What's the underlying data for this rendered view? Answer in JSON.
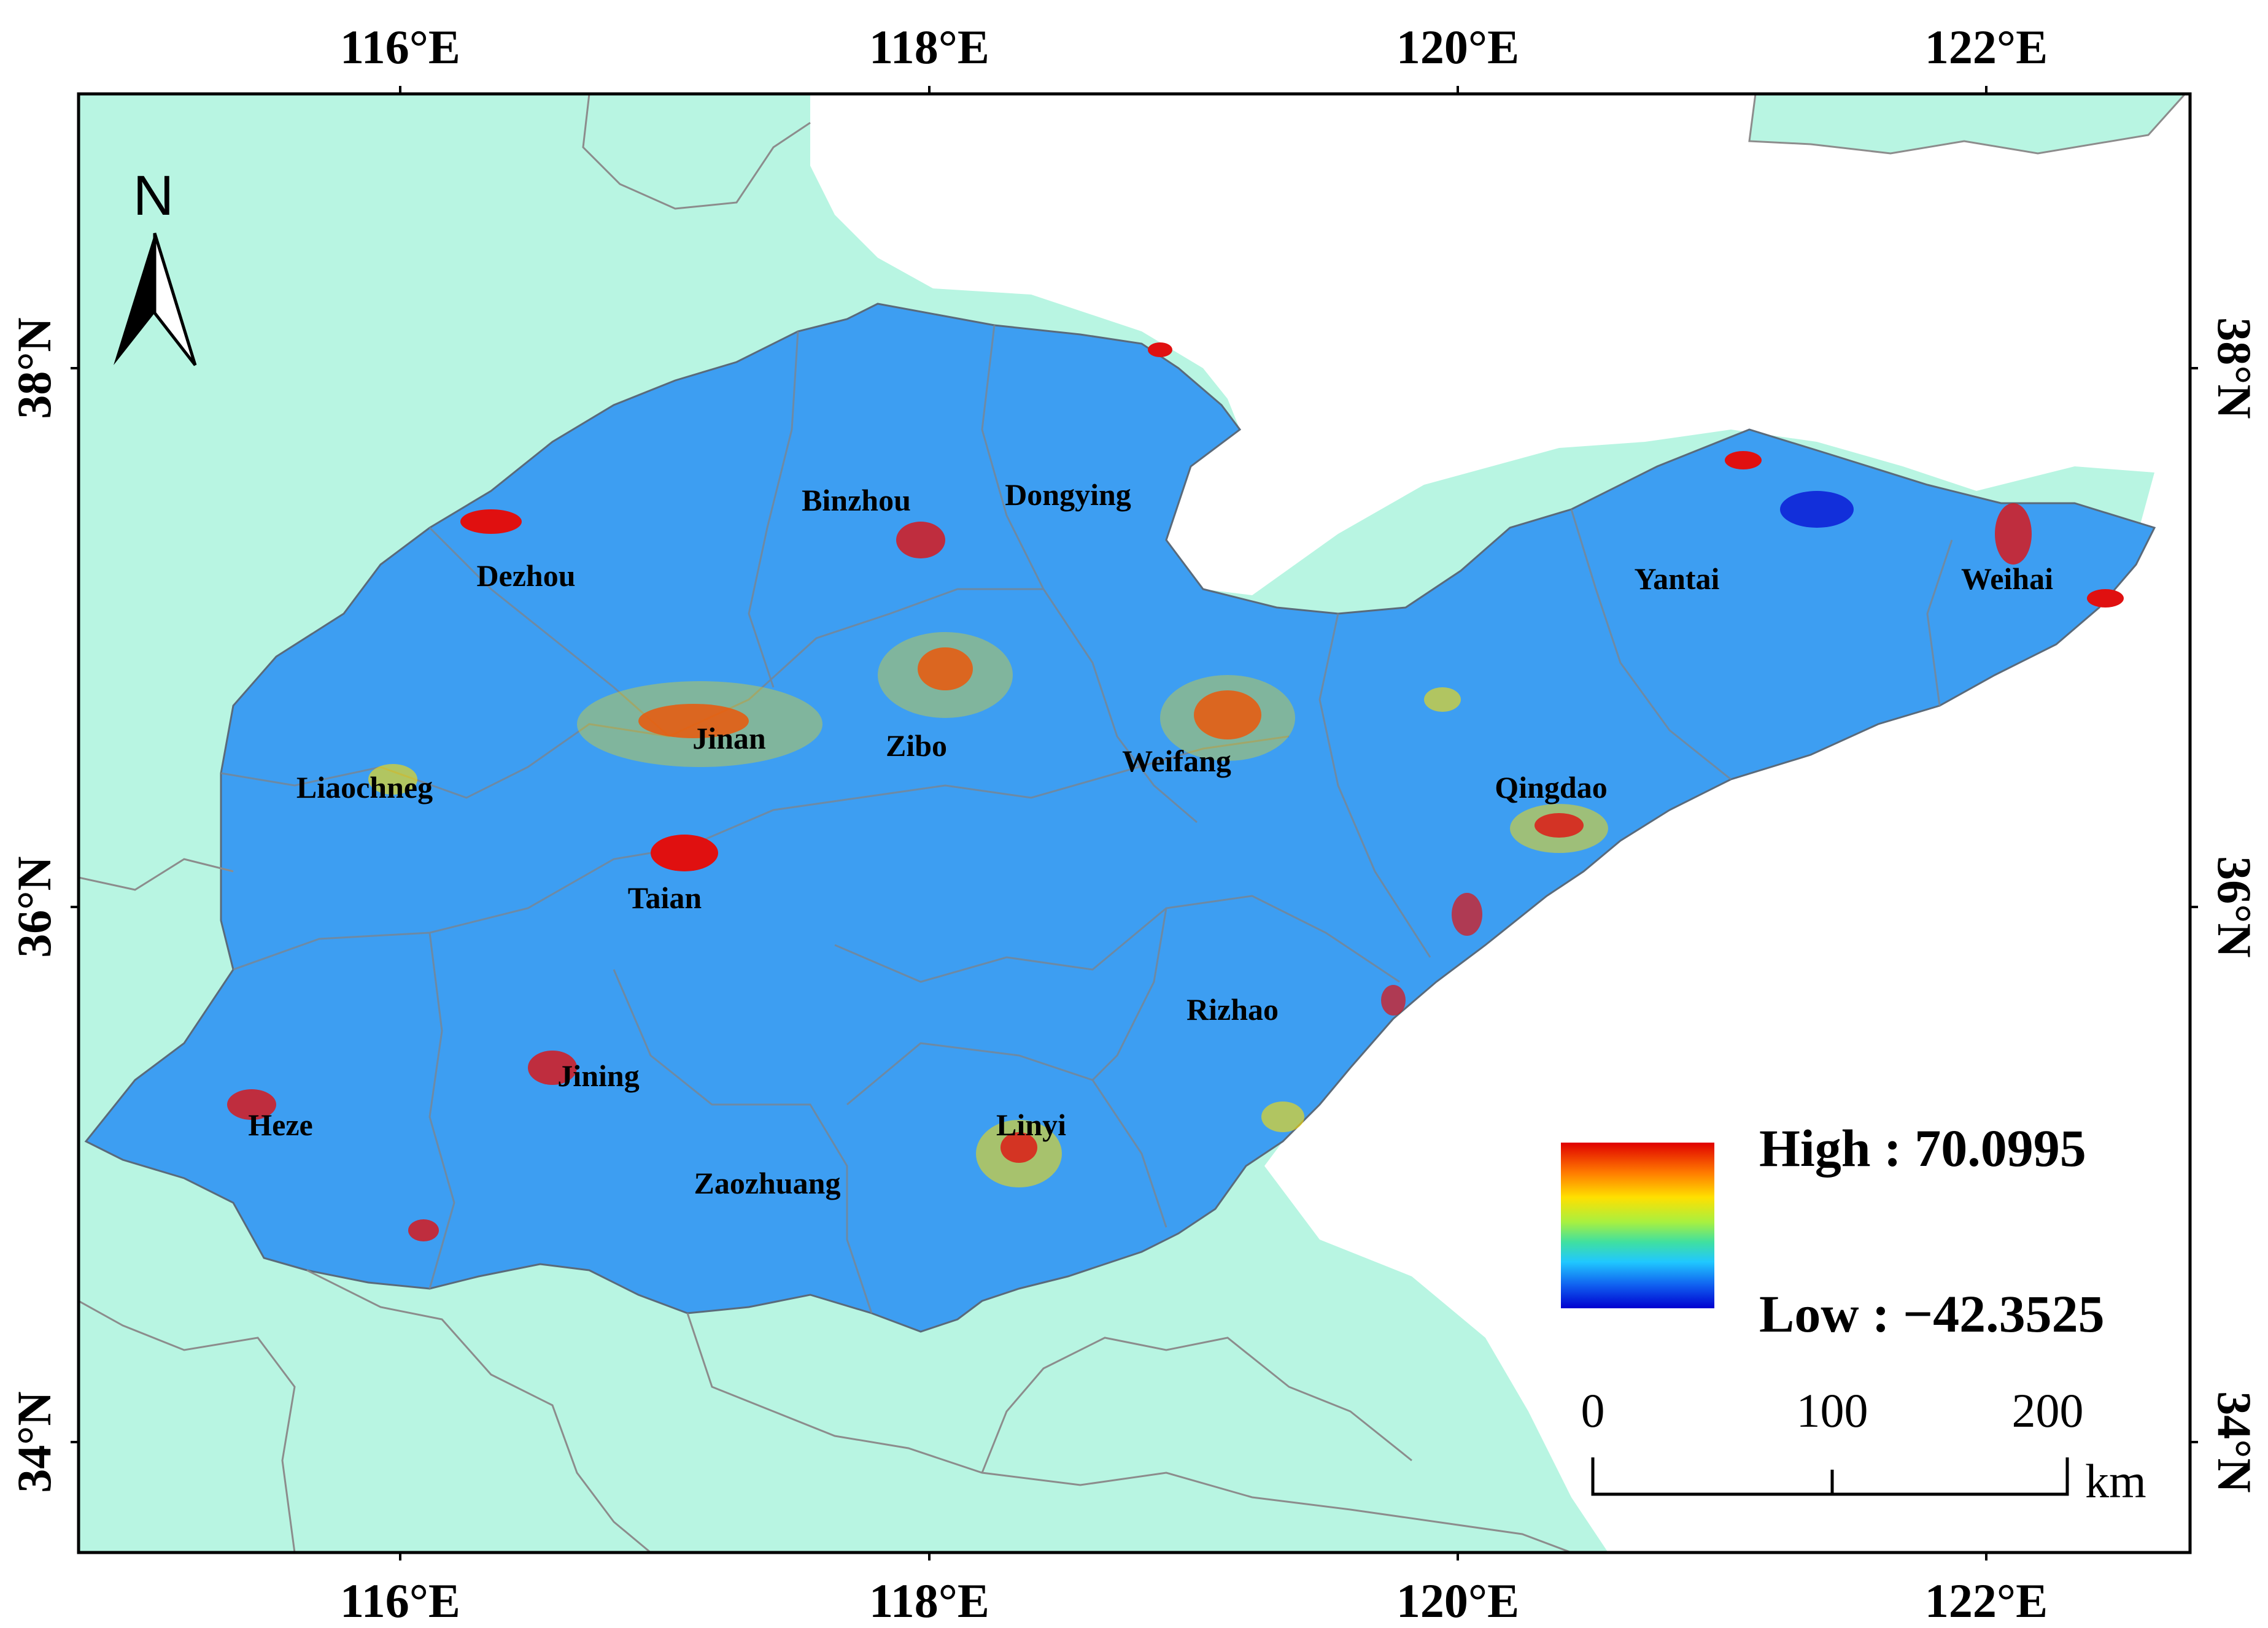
{
  "axes": {
    "top_ticks": [
      "116°E",
      "118°E",
      "120°E",
      "122°E"
    ],
    "bottom_ticks": [
      "116°E",
      "118°E",
      "120°E",
      "122°E"
    ],
    "left_ticks": [
      "38°N",
      "36°N",
      "34°N"
    ],
    "right_ticks": [
      "38°N",
      "36°N",
      "34°N"
    ]
  },
  "north_arrow": {
    "label": "N",
    "icon": "north-arrow-icon"
  },
  "cities": [
    {
      "name": "Binzhou"
    },
    {
      "name": "Dongying"
    },
    {
      "name": "Dezhou"
    },
    {
      "name": "Yantai"
    },
    {
      "name": "Weihai"
    },
    {
      "name": "Jinan"
    },
    {
      "name": "Zibo"
    },
    {
      "name": "Weifang"
    },
    {
      "name": "Liaochneg"
    },
    {
      "name": "Qingdao"
    },
    {
      "name": "Taian"
    },
    {
      "name": "Rizhao"
    },
    {
      "name": "Jining"
    },
    {
      "name": "Heze"
    },
    {
      "name": "Linyi"
    },
    {
      "name": "Zaozhuang"
    }
  ],
  "legend": {
    "high_label": "High : 70.0995",
    "low_label": "Low : −42.3525",
    "high_value": 70.0995,
    "low_value": -42.3525,
    "colors": [
      "#e00000",
      "#ff7a00",
      "#ffe000",
      "#a8f040",
      "#40e0a0",
      "#20c8ff",
      "#1060f0",
      "#0000d0"
    ]
  },
  "scale_bar": {
    "ticks": [
      "0",
      "100",
      "200"
    ],
    "unit": "km"
  },
  "colors": {
    "background_land": "#b8f5e2",
    "sea": "#ffffff",
    "province": "#3d9ef2",
    "hotspot": "#e01010",
    "border": "#8c8c8c",
    "frame": "#000000"
  }
}
